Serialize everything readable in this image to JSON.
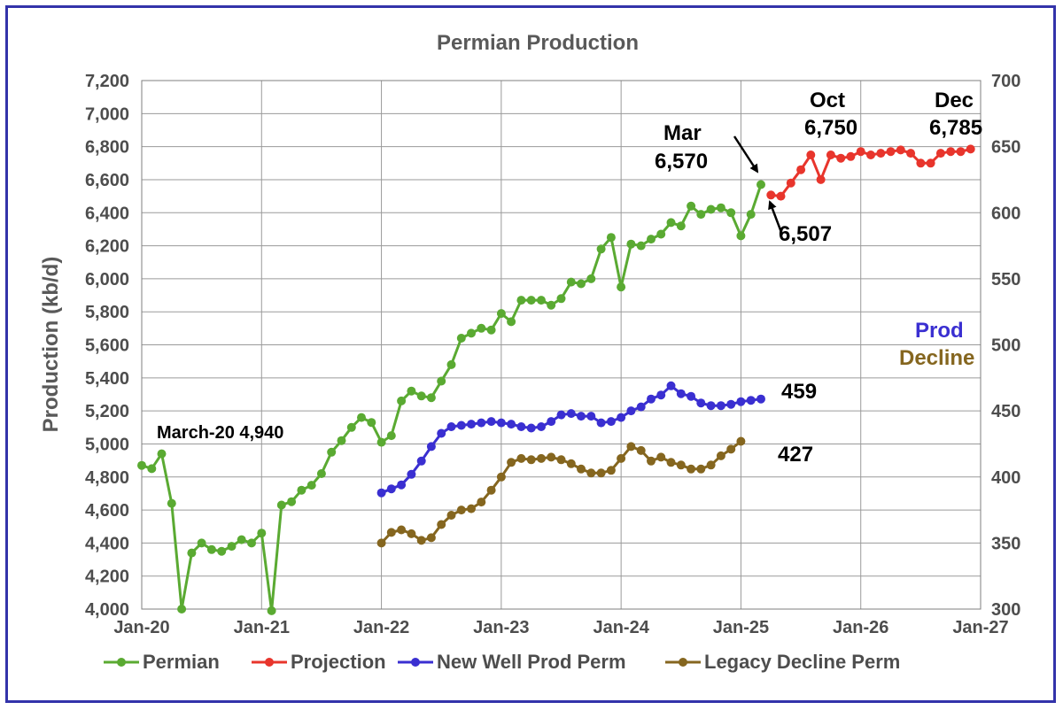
{
  "chart_data": {
    "type": "line",
    "title": "Permian Production",
    "ylabel": "Production (kb/d)",
    "ylim": [
      4000,
      7200
    ],
    "y2lim": [
      300,
      700
    ],
    "xlim": [
      "2020-01",
      "2027-01"
    ],
    "x_ticks": [
      "Jan-20",
      "Jan-21",
      "Jan-22",
      "Jan-23",
      "Jan-24",
      "Jan-25",
      "Jan-26",
      "Jan-27"
    ],
    "y_ticks": [
      "4,000",
      "4,200",
      "4,400",
      "4,600",
      "4,800",
      "5,000",
      "5,200",
      "5,400",
      "5,600",
      "5,800",
      "6,000",
      "6,200",
      "6,400",
      "6,600",
      "6,800",
      "7,000",
      "7,200"
    ],
    "y2_ticks": [
      "300",
      "350",
      "400",
      "450",
      "500",
      "550",
      "600",
      "650",
      "700"
    ],
    "grid": true,
    "legend_position": "bottom",
    "series": [
      {
        "name": "Permian",
        "axis": "left",
        "color": "#5aaa32",
        "start": "2020-01",
        "values": [
          4870,
          4850,
          4940,
          4640,
          4000,
          4340,
          4400,
          4360,
          4350,
          4380,
          4420,
          4400,
          4460,
          3990,
          4630,
          4650,
          4720,
          4750,
          4820,
          4950,
          5020,
          5100,
          5160,
          5130,
          5010,
          5050,
          5260,
          5320,
          5290,
          5280,
          5380,
          5480,
          5640,
          5670,
          5700,
          5690,
          5790,
          5740,
          5870,
          5870,
          5870,
          5840,
          5880,
          5980,
          5970,
          6000,
          6180,
          6250,
          5950,
          6210,
          6200,
          6240,
          6270,
          6340,
          6320,
          6440,
          6390,
          6420,
          6430,
          6400,
          6260,
          6390,
          6570
        ]
      },
      {
        "name": "Projection",
        "axis": "left",
        "color": "#e8352c",
        "start": "2025-04",
        "values": [
          6507,
          6500,
          6580,
          6660,
          6750,
          6600,
          6750,
          6730,
          6740,
          6770,
          6750,
          6760,
          6770,
          6780,
          6760,
          6700,
          6700,
          6760,
          6770,
          6770,
          6785
        ]
      },
      {
        "name": "New Well Prod Perm",
        "axis": "right",
        "color": "#3a2fd1",
        "start": "2022-01",
        "values": [
          388,
          391,
          394,
          402,
          412,
          423,
          433,
          438,
          439,
          440,
          441,
          442,
          441,
          440,
          438,
          437,
          438,
          442,
          447,
          448,
          446,
          446,
          441,
          442,
          445,
          450,
          453,
          459,
          462,
          469,
          463,
          461,
          456,
          454,
          454,
          455,
          457,
          458,
          459
        ]
      },
      {
        "name": "Legacy Decline Perm",
        "axis": "right",
        "color": "#85661f",
        "start": "2022-01",
        "values": [
          350,
          358,
          360,
          357,
          352,
          354,
          364,
          371,
          375,
          376,
          381,
          390,
          400,
          411,
          414,
          413,
          414,
          415,
          413,
          410,
          406,
          403,
          403,
          405,
          414,
          423,
          420,
          412,
          415,
          411,
          409,
          406,
          406,
          409,
          416,
          421,
          427
        ]
      }
    ],
    "annotations": {
      "march20": "March-20 4,940",
      "mar_label": "Mar",
      "mar_value": "6,570",
      "apr_value": "6,507",
      "oct_label": "Oct",
      "oct_value": "6,750",
      "dec_label": "Dec",
      "dec_value": "6,785",
      "prod_label": "Prod",
      "decline_label": "Decline",
      "prod_value": "459",
      "decline_value": "427"
    }
  }
}
